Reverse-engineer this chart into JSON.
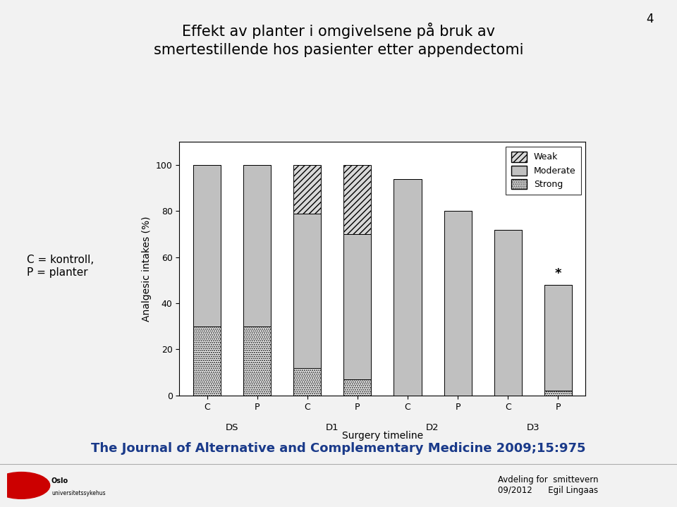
{
  "title_line1": "Effekt av planter i omgivelsene på bruk av",
  "title_line2": "smertestillende hos pasienter etter appendectomi",
  "subtitle_num": "4",
  "xlabel": "Surgery timeline",
  "ylabel": "Analgesic intakes (%)",
  "xlabels": [
    "C",
    "P",
    "C",
    "P",
    "C",
    "P",
    "C",
    "P"
  ],
  "group_labels": [
    "DS",
    "D1",
    "D2",
    "D3"
  ],
  "group_positions": [
    0.5,
    2.5,
    4.5,
    6.5
  ],
  "ylim": [
    0,
    110
  ],
  "yticks": [
    0,
    20,
    40,
    60,
    80,
    100
  ],
  "bar_positions": [
    0,
    1,
    2,
    3,
    4,
    5,
    6,
    7
  ],
  "strong_values": [
    30,
    30,
    12,
    7,
    0,
    0,
    0,
    2
  ],
  "moderate_values": [
    70,
    70,
    67,
    63,
    94,
    80,
    72,
    46
  ],
  "weak_values": [
    0,
    0,
    21,
    30,
    0,
    0,
    0,
    0
  ],
  "total_heights": [
    100,
    100,
    100,
    100,
    94,
    80,
    72,
    48
  ],
  "bar_width": 0.55,
  "background_color": "#f2f2f2",
  "chart_bg_color": "#ffffff",
  "note_text": "C = kontroll,\nP = planter",
  "footer_text": "The Journal of Alternative and Complementary Medicine 2009;15:975",
  "star_bar": 7,
  "bottom_bar_color": "#e8e8e8",
  "bottom_text_right": "Avdeling for  smittevern\n09/2012      Egil Lingaas"
}
